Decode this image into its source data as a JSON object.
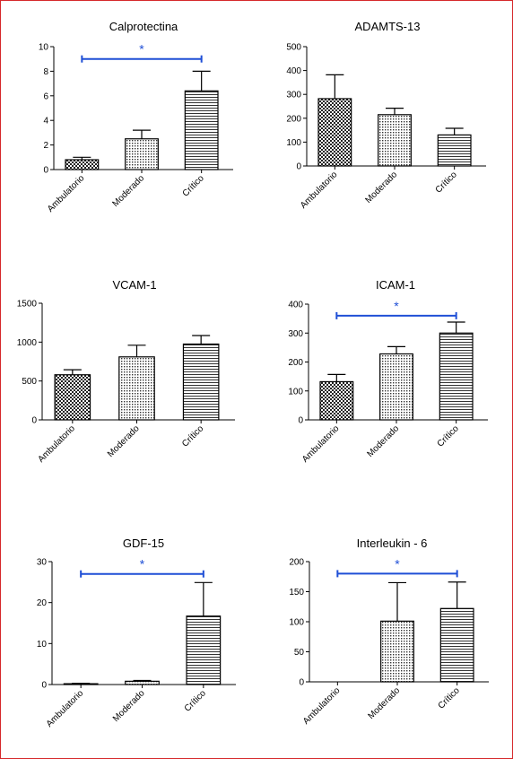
{
  "chart_data": [
    {
      "type": "bar",
      "title": "Calprotectina",
      "categories": [
        "Ambulatorio",
        "Moderado",
        "Crítico"
      ],
      "values": [
        0.8,
        2.5,
        6.4
      ],
      "error": [
        0.2,
        0.7,
        1.6
      ],
      "ylim": [
        0,
        10
      ],
      "yticks": [
        "0",
        "2",
        "4",
        "6",
        "8",
        "10"
      ],
      "significance": {
        "from": 0,
        "to": 2,
        "label": "*"
      }
    },
    {
      "type": "bar",
      "title": "ADAMTS-13",
      "categories": [
        "Ambulatorio",
        "Moderado",
        "Crítico"
      ],
      "values": [
        282,
        215,
        130
      ],
      "error": [
        100,
        27,
        28
      ],
      "ylim": [
        0,
        500
      ],
      "yticks": [
        "0",
        "100",
        "200",
        "300",
        "400",
        "500"
      ]
    },
    {
      "type": "bar",
      "title": "VCAM-1",
      "categories": [
        "Ambulatorio",
        "Moderado",
        "Crítico"
      ],
      "values": [
        580,
        810,
        975
      ],
      "error": [
        65,
        150,
        110
      ],
      "ylim": [
        0,
        1500
      ],
      "yticks": [
        "0",
        "500",
        "1000",
        "1500"
      ]
    },
    {
      "type": "bar",
      "title": "ICAM-1",
      "categories": [
        "Ambulatorio",
        "Moderado",
        "Crítico"
      ],
      "values": [
        132,
        228,
        300
      ],
      "error": [
        25,
        25,
        38
      ],
      "ylim": [
        0,
        400
      ],
      "yticks": [
        "0",
        "100",
        "200",
        "300",
        "400"
      ],
      "significance": {
        "from": 0,
        "to": 2,
        "label": "*"
      }
    },
    {
      "type": "bar",
      "title": "GDF-15",
      "categories": [
        "Ambulatorio",
        "Moderado",
        "Crítico"
      ],
      "values": [
        0.2,
        0.8,
        16.7
      ],
      "error": [
        0.1,
        0.2,
        8.2
      ],
      "ylim": [
        0,
        30
      ],
      "yticks": [
        "0",
        "10",
        "20",
        "30"
      ],
      "significance": {
        "from": 0,
        "to": 2,
        "label": "*"
      }
    },
    {
      "type": "bar",
      "title": "Interleukin - 6",
      "categories": [
        "Ambulatorio",
        "Moderado",
        "Crítico"
      ],
      "values": [
        0,
        101,
        122
      ],
      "error": [
        0,
        64,
        44
      ],
      "ylim": [
        0,
        200
      ],
      "yticks": [
        "0",
        "50",
        "100",
        "150",
        "200"
      ],
      "significance": {
        "from": 0,
        "to": 2,
        "label": "*"
      }
    }
  ],
  "colors": {
    "frame": "#d6282b",
    "significance": "#1f4fd6",
    "bar_stroke": "#000000"
  }
}
